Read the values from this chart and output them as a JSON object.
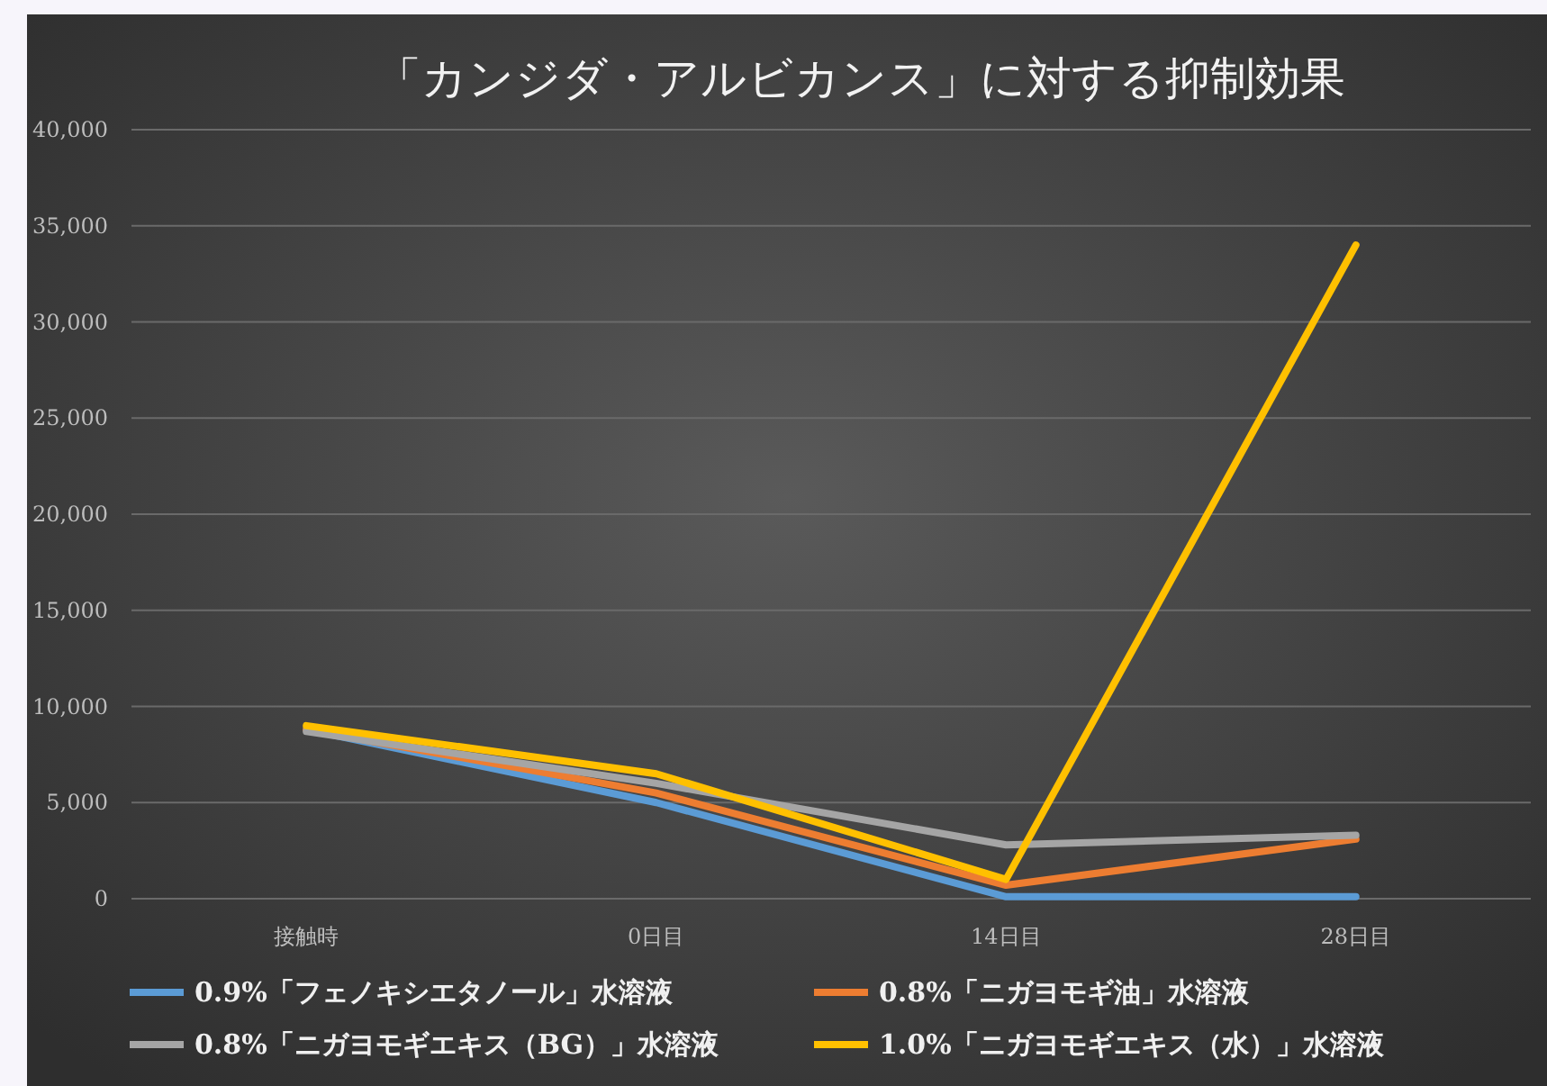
{
  "chart_data": {
    "type": "line",
    "title": "「カンジダ・アルビカンス」に対する抑制効果",
    "categories": [
      "接触時",
      "0日目",
      "14日目",
      "28日目"
    ],
    "series": [
      {
        "name": "0.9%「フェノキシエタノール」水溶液",
        "color": "#5b9bd5",
        "values": [
          8800,
          5000,
          100,
          100
        ]
      },
      {
        "name": "0.8%「ニガヨモギ油」水溶液",
        "color": "#ed7d31",
        "values": [
          8800,
          5500,
          700,
          3100
        ]
      },
      {
        "name": "0.8%「ニガヨモギエキス（BG）」水溶液",
        "color": "#a5a5a5",
        "values": [
          8700,
          6000,
          2800,
          3300
        ]
      },
      {
        "name": "1.0%「ニガヨモギエキス（水）」水溶液",
        "color": "#ffc000",
        "values": [
          9000,
          6500,
          1000,
          34000
        ]
      }
    ],
    "ylim": [
      0,
      40000
    ],
    "yticks": [
      {
        "value": 0,
        "label": "0"
      },
      {
        "value": 5000,
        "label": "5,000"
      },
      {
        "value": 10000,
        "label": "10,000"
      },
      {
        "value": 15000,
        "label": "15,000"
      },
      {
        "value": 20000,
        "label": "20,000"
      },
      {
        "value": 25000,
        "label": "25,000"
      },
      {
        "value": 30000,
        "label": "30,000"
      },
      {
        "value": 35000,
        "label": "35,000"
      },
      {
        "value": 40000,
        "label": "40,000"
      }
    ],
    "grid": "y",
    "legend": "bottom",
    "marker": "none",
    "line_style": "solid"
  }
}
